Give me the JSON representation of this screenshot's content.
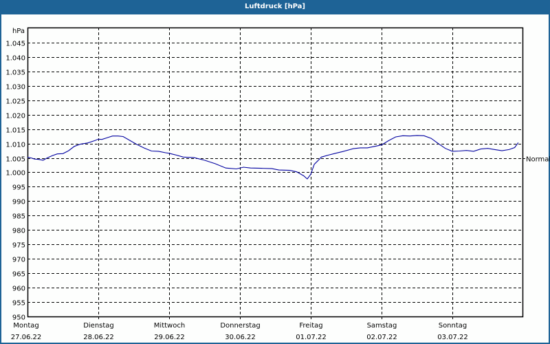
{
  "window": {
    "title": "Luftdruck [hPa]"
  },
  "chart_data": {
    "type": "line",
    "title": "Luftdruck [hPa]",
    "ylabel": "hPa",
    "xlabel": "",
    "ylim": [
      950,
      1045
    ],
    "y_ticks": [
      "1.045",
      "1.040",
      "1.035",
      "1.030",
      "1.025",
      "1.020",
      "1.015",
      "1.010",
      "1.005",
      "1.000",
      "995",
      "990",
      "985",
      "980",
      "975",
      "970",
      "965",
      "960",
      "955",
      "950"
    ],
    "y_tick_values": [
      1045,
      1040,
      1035,
      1030,
      1025,
      1020,
      1015,
      1010,
      1005,
      1000,
      995,
      990,
      985,
      980,
      975,
      970,
      965,
      960,
      955,
      950
    ],
    "x_categories": [
      {
        "day": "Montag",
        "date": "27.06.22"
      },
      {
        "day": "Dienstag",
        "date": "28.06.22"
      },
      {
        "day": "Mittwoch",
        "date": "29.06.22"
      },
      {
        "day": "Donnerstag",
        "date": "30.06.22"
      },
      {
        "day": "Freitag",
        "date": "01.07.22"
      },
      {
        "day": "Samstag",
        "date": "02.07.22"
      },
      {
        "day": "Sonntag",
        "date": "03.07.22"
      }
    ],
    "grid": true,
    "grid_style": "dashed",
    "reference_line": {
      "label": "Normal",
      "value": 1005
    },
    "series": [
      {
        "name": "Luftdruck",
        "color": "#0000a0",
        "x_days": [
          0.0,
          0.05,
          0.1,
          0.15,
          0.22,
          0.28,
          0.35,
          0.42,
          0.5,
          0.58,
          0.66,
          0.75,
          0.85,
          0.95,
          1.0,
          1.05,
          1.15,
          1.2,
          1.28,
          1.35,
          1.45,
          1.55,
          1.65,
          1.75,
          1.85,
          1.95,
          2.0,
          2.1,
          2.2,
          2.35,
          2.5,
          2.65,
          2.8,
          2.95,
          3.05,
          3.15,
          3.3,
          3.45,
          3.55,
          3.7,
          3.8,
          3.9,
          3.95,
          4.0,
          4.05,
          4.1,
          4.15,
          4.25,
          4.35,
          4.45,
          4.6,
          4.7,
          4.8,
          4.9,
          5.0,
          5.1,
          5.2,
          5.3,
          5.4,
          5.5,
          5.6,
          5.7,
          5.8,
          5.9,
          6.0,
          6.1,
          6.2,
          6.3,
          6.4,
          6.5,
          6.6,
          6.7,
          6.8,
          6.88,
          6.93
        ],
        "values": [
          1005.2,
          1005.0,
          1004.6,
          1004.5,
          1004.2,
          1005.0,
          1005.8,
          1006.4,
          1006.5,
          1007.5,
          1009.0,
          1009.8,
          1010.2,
          1011.0,
          1011.5,
          1011.4,
          1012.2,
          1012.6,
          1012.6,
          1012.4,
          1011.0,
          1009.6,
          1008.4,
          1007.4,
          1007.3,
          1006.8,
          1006.6,
          1006.0,
          1005.3,
          1005.1,
          1004.2,
          1003.0,
          1001.5,
          1001.2,
          1001.8,
          1001.5,
          1001.4,
          1001.3,
          1000.8,
          1000.7,
          1000.2,
          998.8,
          997.7,
          999.3,
          1002.8,
          1004.0,
          1005.3,
          1006.0,
          1006.6,
          1007.2,
          1008.2,
          1008.5,
          1008.5,
          1009.0,
          1009.5,
          1011.0,
          1012.3,
          1012.7,
          1012.6,
          1012.8,
          1012.7,
          1011.8,
          1010.0,
          1008.3,
          1007.3,
          1007.4,
          1007.6,
          1007.3,
          1008.1,
          1008.3,
          1007.9,
          1007.5,
          1007.9,
          1008.6,
          1010.3
        ]
      }
    ]
  }
}
